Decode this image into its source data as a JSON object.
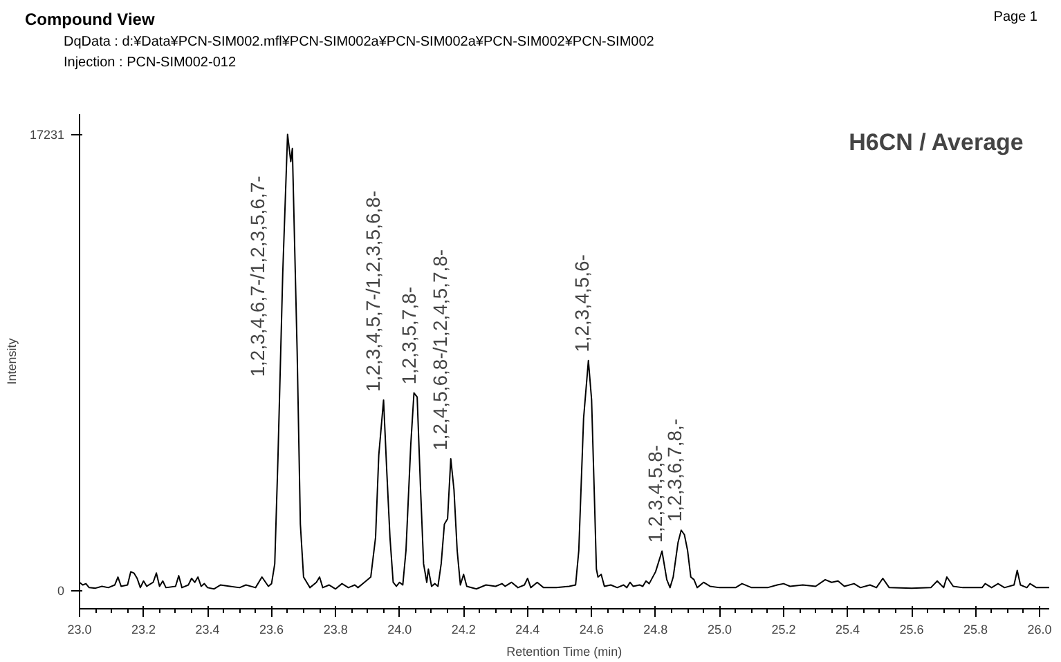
{
  "chart_data": {
    "type": "line",
    "title": "Compound View",
    "subtitle": "DqData : d:¥Data¥PCN-SIM002.mfl¥PCN-SIM002a¥PCN-SIM002a¥PCN-SIM002¥PCN-SIM002",
    "xlabel": "Retention Time (min)",
    "ylabel": "Intensity",
    "annotations": [
      "Injection : PCN-SIM002-012",
      "Page 1",
      "H6CN / Average",
      "1,2,3,4,6,7-/1,2,3,5,6,7-",
      {
        "text": "1,2,3,4,5,7-/1,2,3,5,6,8-",
        "x": 23.95,
        "y": 7190
      },
      {
        "text": "1,2,3,5,7,8-",
        "x": 24.05,
        "y": 7460
      },
      {
        "text": "1,2,4,5,6,8-/1,2,4,5,7,8-",
        "x": 24.16,
        "y": 4970
      },
      {
        "text": "1,2,3,4,5,6-",
        "x": 24.59,
        "y": 8680
      },
      {
        "text": "1,2,3,4,5,8-",
        "x": 24.82,
        "y": 1480
      },
      {
        "text": "1,2,3,6,7,8,-",
        "x": 24.88,
        "y": 2270
      }
    ],
    "x": [
      23.0,
      23.01,
      23.02,
      23.03,
      23.05,
      23.07,
      23.09,
      23.11,
      23.12,
      23.13,
      23.15,
      23.16,
      23.17,
      23.18,
      23.19,
      23.2,
      23.21,
      23.23,
      23.24,
      23.25,
      23.26,
      23.27,
      23.3,
      23.31,
      23.32,
      23.34,
      23.35,
      23.36,
      23.37,
      23.38,
      23.39,
      23.4,
      23.42,
      23.44,
      23.47,
      23.5,
      23.52,
      23.55,
      23.57,
      23.59,
      23.6,
      23.61,
      23.62,
      23.635,
      23.65,
      23.66,
      23.665,
      23.68,
      23.69,
      23.7,
      23.71,
      23.72,
      23.74,
      23.75,
      23.76,
      23.78,
      23.8,
      23.82,
      23.84,
      23.86,
      23.87,
      23.89,
      23.91,
      23.925,
      23.935,
      23.95,
      23.96,
      23.97,
      23.98,
      23.99,
      24.0,
      24.01,
      24.02,
      24.035,
      24.045,
      24.055,
      24.065,
      24.075,
      24.085,
      24.09,
      24.1,
      24.11,
      24.12,
      24.13,
      24.14,
      24.15,
      24.16,
      24.17,
      24.18,
      24.19,
      24.2,
      24.21,
      24.24,
      24.27,
      24.3,
      24.32,
      24.33,
      24.35,
      24.37,
      24.39,
      24.4,
      24.41,
      24.43,
      24.45,
      24.49,
      24.53,
      24.55,
      24.56,
      24.575,
      24.59,
      24.6,
      24.61,
      24.615,
      24.62,
      24.63,
      24.64,
      24.66,
      24.68,
      24.7,
      24.71,
      24.72,
      24.73,
      24.75,
      24.76,
      24.77,
      24.78,
      24.8,
      24.82,
      24.835,
      24.845,
      24.855,
      24.87,
      24.88,
      24.89,
      24.9,
      24.91,
      24.92,
      24.93,
      24.95,
      24.97,
      25.0,
      25.05,
      25.07,
      25.1,
      25.15,
      25.18,
      25.2,
      25.22,
      25.26,
      25.3,
      25.33,
      25.35,
      25.37,
      25.39,
      25.42,
      25.44,
      25.47,
      25.49,
      25.51,
      25.53,
      25.6,
      25.66,
      25.68,
      25.7,
      25.71,
      25.73,
      25.76,
      25.82,
      25.83,
      25.85,
      25.87,
      25.89,
      25.92,
      25.93,
      25.94,
      25.96,
      25.97,
      25.99,
      26.03
    ],
    "series": [
      {
        "color": "#000000",
        "values": [
          300,
          200,
          250,
          100,
          80,
          150,
          100,
          200,
          500,
          150,
          200,
          700,
          650,
          450,
          100,
          350,
          150,
          300,
          650,
          150,
          350,
          100,
          150,
          550,
          100,
          200,
          450,
          300,
          500,
          150,
          250,
          100,
          50,
          200,
          150,
          100,
          200,
          100,
          500,
          150,
          250,
          1000,
          5000,
          12000,
          17231,
          16200,
          16700,
          9000,
          2500,
          500,
          300,
          100,
          300,
          500,
          100,
          200,
          50,
          250,
          100,
          200,
          100,
          300,
          500,
          2000,
          5100,
          7190,
          4500,
          2000,
          300,
          150,
          300,
          200,
          1500,
          5500,
          7460,
          7300,
          4000,
          1000,
          300,
          800,
          150,
          250,
          150,
          1000,
          2500,
          2700,
          4970,
          3800,
          1500,
          200,
          600,
          150,
          50,
          200,
          150,
          250,
          150,
          300,
          100,
          200,
          450,
          100,
          300,
          100,
          100,
          150,
          200,
          1500,
          6500,
          8680,
          7200,
          3000,
          800,
          500,
          600,
          150,
          200,
          100,
          200,
          100,
          300,
          150,
          200,
          150,
          350,
          250,
          700,
          1480,
          400,
          100,
          500,
          1800,
          2270,
          2100,
          1500,
          500,
          400,
          100,
          300,
          150,
          100,
          100,
          250,
          100,
          100,
          200,
          250,
          150,
          200,
          150,
          400,
          300,
          350,
          150,
          250,
          100,
          200,
          100,
          450,
          100,
          80,
          100,
          350,
          100,
          500,
          150,
          100,
          100,
          250,
          100,
          250,
          100,
          200,
          750,
          200,
          100,
          250,
          100,
          100
        ]
      }
    ],
    "xlim": [
      23.0,
      26.03
    ],
    "ylim": [
      -700,
      18000
    ],
    "xticks": [
      {
        "value": 23.0,
        "label": "23.0"
      },
      23.2,
      23.4,
      23.6,
      23.8,
      {
        "value": 24.0,
        "label": "24.0"
      },
      24.2,
      24.4,
      24.6,
      24.8,
      {
        "value": 25.0,
        "label": "25.0"
      },
      25.2,
      25.4,
      25.6,
      25.8,
      {
        "value": 26.0,
        "label": "26.0"
      }
    ],
    "yticks": [
      0,
      17231
    ],
    "grid": false,
    "marker": "none",
    "line_style": "solid"
  }
}
